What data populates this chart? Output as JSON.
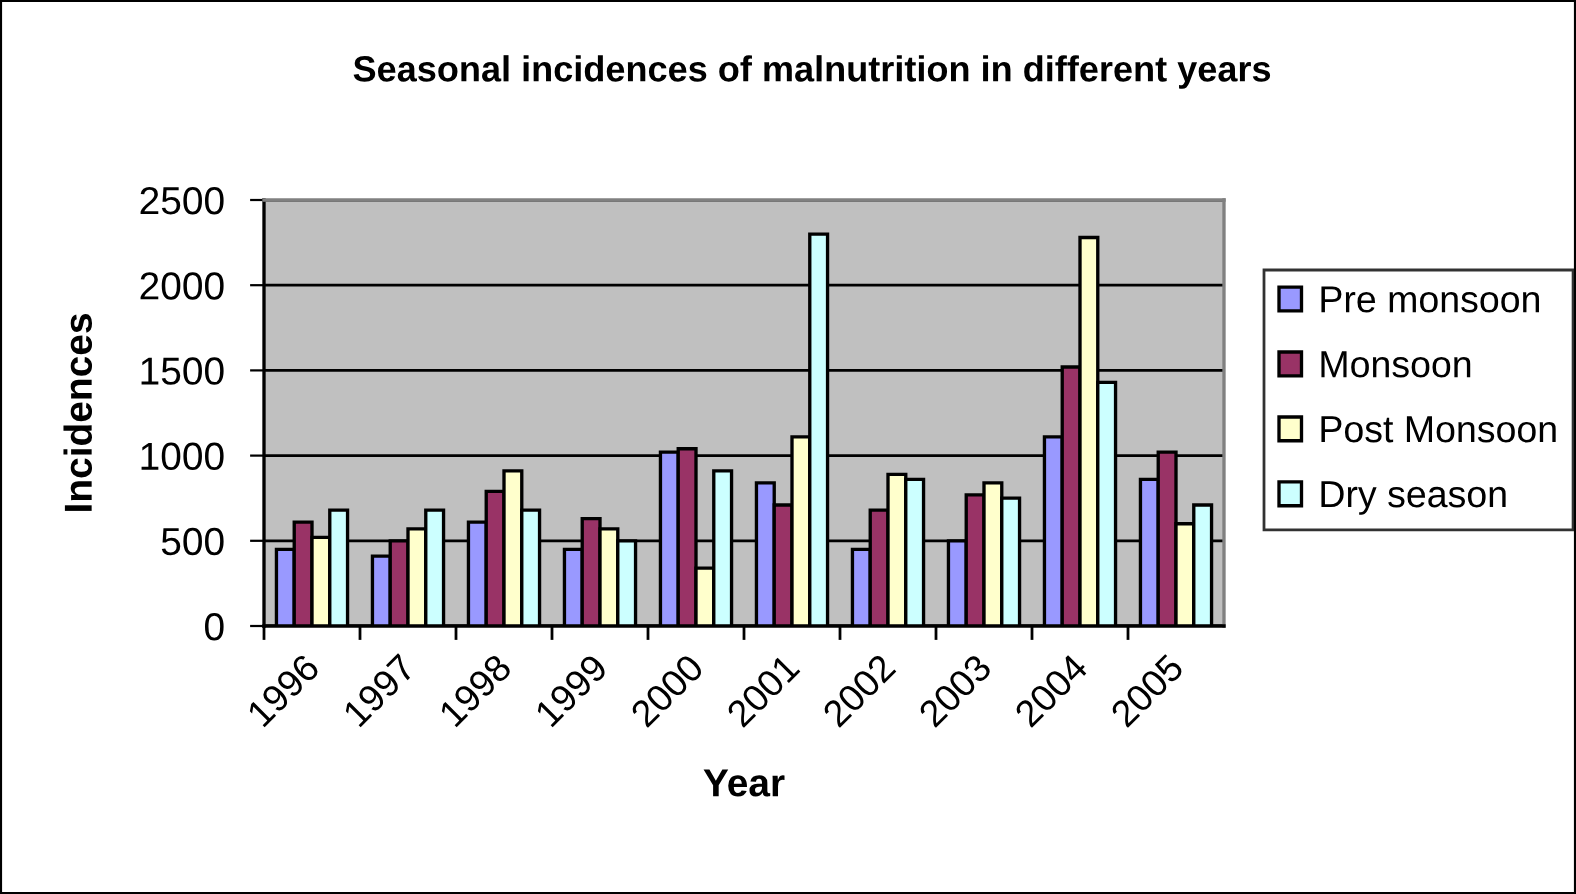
{
  "chart_data": {
    "type": "bar",
    "title": "Seasonal incidences of malnutrition in different years",
    "xlabel": "Year",
    "ylabel": "Incidences",
    "categories": [
      "1996",
      "1997",
      "1998",
      "1999",
      "2000",
      "2001",
      "2002",
      "2003",
      "2004",
      "2005"
    ],
    "series": [
      {
        "name": "Pre monsoon",
        "color": "#9999ff",
        "values": [
          450,
          410,
          610,
          450,
          1020,
          840,
          450,
          500,
          1110,
          860
        ]
      },
      {
        "name": "Monsoon",
        "color": "#993366",
        "values": [
          610,
          500,
          790,
          630,
          1040,
          710,
          680,
          770,
          1520,
          1020
        ]
      },
      {
        "name": "Post Monsoon",
        "color": "#ffffcc",
        "values": [
          520,
          570,
          910,
          570,
          340,
          1110,
          890,
          840,
          2280,
          600
        ]
      },
      {
        "name": "Dry season",
        "color": "#ccffff",
        "values": [
          680,
          680,
          680,
          500,
          910,
          2300,
          860,
          750,
          1430,
          710
        ]
      }
    ],
    "ylim": [
      0,
      2500
    ],
    "yticks": [
      0,
      500,
      1000,
      1500,
      2000,
      2500
    ],
    "grid": "y",
    "legend": "right"
  }
}
